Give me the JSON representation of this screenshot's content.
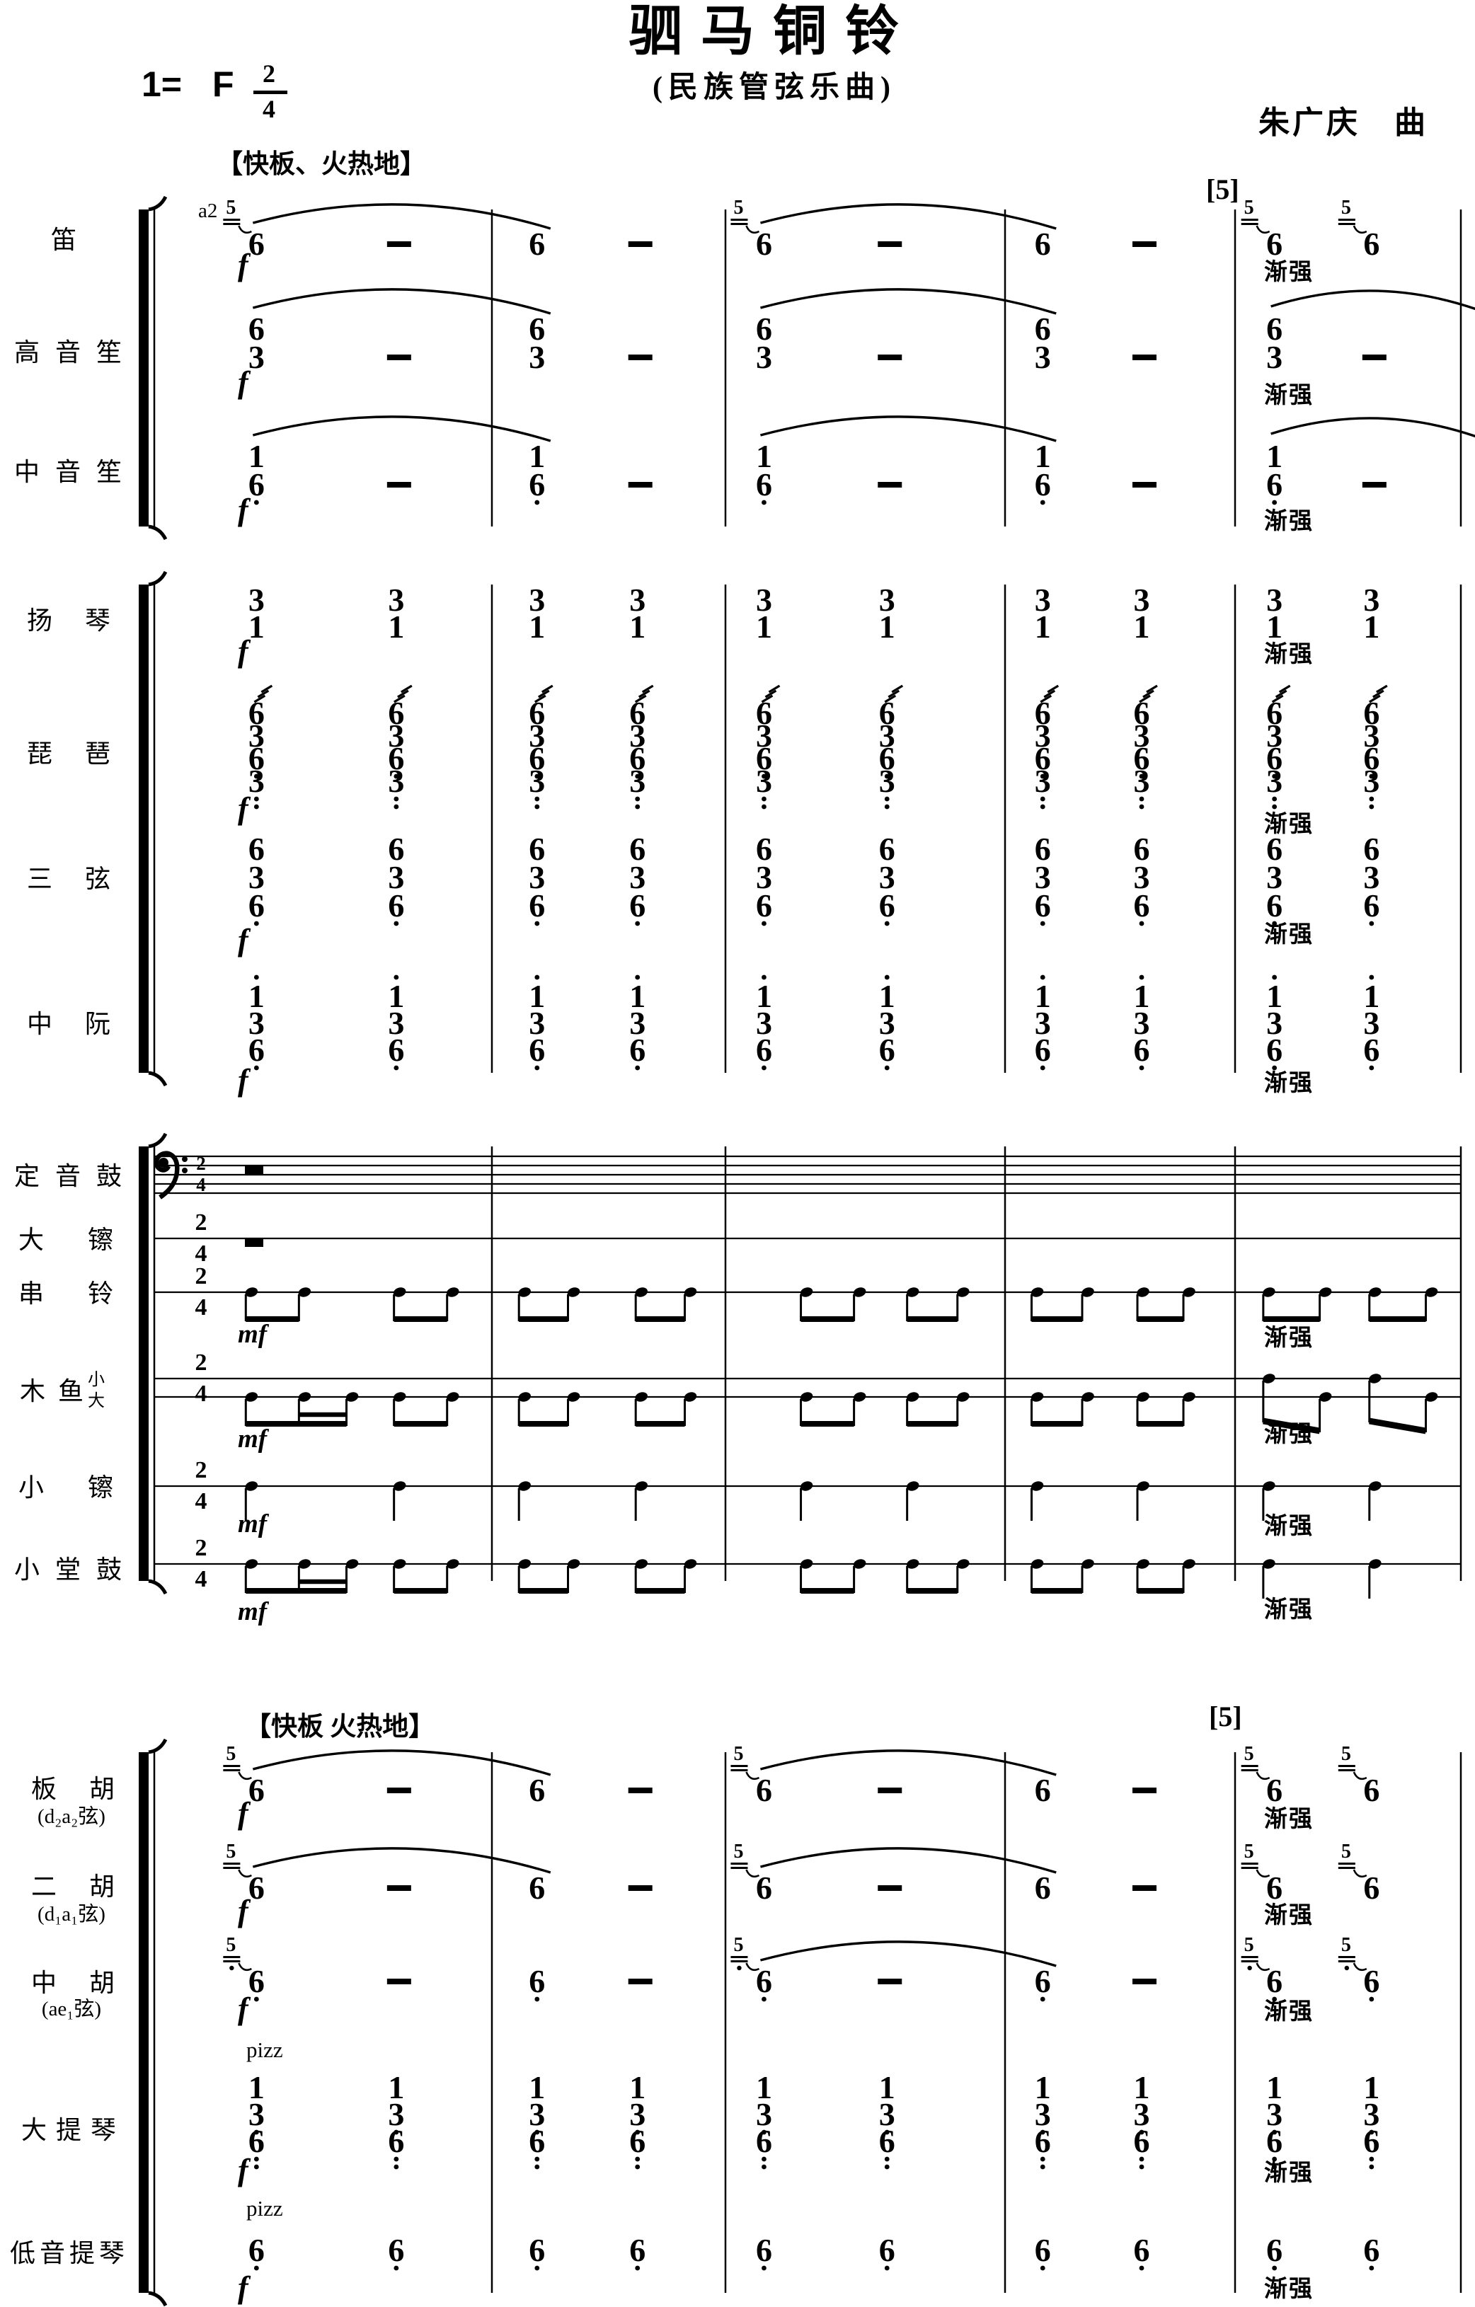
{
  "page": {
    "paper_color": "#ffffff",
    "ink_color": "#000000"
  },
  "header": {
    "title": "驷马铜铃",
    "subtitle": "(民族管弦乐曲)",
    "composer": "朱广庆　曲",
    "key_signature": "1=",
    "key_note": "F",
    "time_numerator": "2",
    "time_denominator": "4",
    "tempo_winds": "【快板、火热地】",
    "tempo_strings": "【快板 火热地】",
    "rehearsal_mark": "[5]"
  },
  "marks": {
    "forte": "f",
    "mezzo_forte": "mf",
    "crescendo": "渐强",
    "pizzicato": "pizz",
    "a2": "a2"
  },
  "instruments": [
    {
      "id": "di",
      "label": "笛",
      "type": "melody",
      "chord": [
        "6"
      ],
      "grace": "5",
      "bar_patterns": [
        "grace-note dash",
        "note dash",
        "grace-note dash",
        "note dash",
        "grace-note grace-note"
      ],
      "slurs": [
        [
          0,
          1
        ],
        [
          2,
          3
        ]
      ],
      "dynamic": "f",
      "crescendo_bar": 5,
      "note_marking": "a2"
    },
    {
      "id": "gaoyinsheng",
      "label": "高音笙",
      "type": "melody",
      "chord": [
        "6",
        "3"
      ],
      "bar_patterns": [
        "note dash",
        "note dash",
        "note dash",
        "note dash",
        "note dash"
      ],
      "slurs": [
        [
          0,
          1
        ],
        [
          2,
          3
        ],
        [
          4,
          "edge"
        ]
      ],
      "dynamic": "f",
      "crescendo_bar": 5
    },
    {
      "id": "zhongyinsheng",
      "label": "中音笙",
      "type": "melody",
      "chord": [
        "1",
        "6."
      ],
      "bar_patterns": [
        "note dash",
        "note dash",
        "note dash",
        "note dash",
        "note dash"
      ],
      "slurs": [
        [
          0,
          1
        ],
        [
          2,
          3
        ],
        [
          4,
          "edge"
        ]
      ],
      "dynamic": "f",
      "crescendo_bar": 5
    },
    {
      "id": "yangqin",
      "label": "扬 琴",
      "type": "melody",
      "chord": [
        "3",
        "1"
      ],
      "bar_patterns": [
        "note note",
        "note note",
        "note note",
        "note note",
        "note note"
      ],
      "slurs": [],
      "dynamic": "f",
      "crescendo_bar": 5
    },
    {
      "id": "pipa",
      "label": "琵 琶",
      "type": "melody",
      "tremolo": true,
      "chord": [
        "6",
        "3",
        "6.",
        "3:"
      ],
      "bar_patterns": [
        "note note",
        "note note",
        "note note",
        "note note",
        "note note"
      ],
      "slurs": [],
      "dynamic": "f",
      "crescendo_bar": 5
    },
    {
      "id": "sanxian",
      "label": "三 弦",
      "type": "melody",
      "chord": [
        "6",
        "3",
        "6."
      ],
      "bar_patterns": [
        "note note",
        "note note",
        "note note",
        "note note",
        "note note"
      ],
      "slurs": [],
      "dynamic": "f",
      "crescendo_bar": 5
    },
    {
      "id": "zhongruan",
      "label": "中 阮",
      "type": "melody",
      "chord": [
        "1'",
        "3",
        "6."
      ],
      "bar_patterns": [
        "note note",
        "note note",
        "note note",
        "note note",
        "note note"
      ],
      "slurs": [],
      "dynamic": "f",
      "crescendo_bar": 5
    },
    {
      "id": "dingyingu",
      "label": "定音鼓",
      "type": "percussion",
      "staff_lines": 5,
      "clef": "bass",
      "has_time_signature": true,
      "rhythm": [
        "rest",
        "",
        "",
        "",
        ""
      ]
    },
    {
      "id": "dacha",
      "label": "大 镲",
      "type": "percussion",
      "staff_lines": 1,
      "has_time_signature": true,
      "rhythm": [
        "rest",
        "",
        "",
        "",
        ""
      ]
    },
    {
      "id": "chuanling",
      "label": "串 铃",
      "type": "percussion",
      "staff_lines": 1,
      "has_time_signature": true,
      "rhythm": [
        "ee ee",
        "ee ee",
        "ee ee",
        "ee ee",
        "ee ee"
      ],
      "dynamic": "mf",
      "crescendo_bar": 5
    },
    {
      "id": "muyu",
      "label": "木鱼",
      "sub_top": "小",
      "sub_bottom": "大",
      "type": "percussion",
      "staff_lines": 2,
      "has_time_signature": true,
      "rhythm": [
        "e-ss ee",
        "ee ee",
        "ee ee",
        "ee ee",
        "alt alt"
      ],
      "dynamic": "mf",
      "crescendo_bar": 5
    },
    {
      "id": "xiaocha",
      "label": "小 镲",
      "type": "percussion",
      "staff_lines": 1,
      "has_time_signature": true,
      "rhythm": [
        "q q",
        "q q",
        "q q",
        "q q",
        "q q"
      ],
      "dynamic": "mf",
      "crescendo_bar": 5
    },
    {
      "id": "xiaotanggu",
      "label": "小堂鼓",
      "type": "percussion",
      "staff_lines": 1,
      "has_time_signature": true,
      "rhythm": [
        "e-ss ee",
        "ee ee",
        "ee ee",
        "ee ee",
        "q q"
      ],
      "dynamic": "mf",
      "crescendo_bar": 5
    },
    {
      "id": "banhu",
      "label": "板 胡",
      "sub": "(d₂a₂弦)",
      "type": "melody",
      "chord": [
        "6"
      ],
      "grace": "5",
      "bar_patterns": [
        "grace-note dash",
        "note dash",
        "grace-note dash",
        "note dash",
        "grace-note grace-note"
      ],
      "slurs": [
        [
          0,
          1
        ],
        [
          2,
          3
        ]
      ],
      "dynamic": "f",
      "crescendo_bar": 5
    },
    {
      "id": "erhu",
      "label": "二 胡",
      "sub": "(d₁a₁弦)",
      "type": "melody",
      "chord": [
        "6"
      ],
      "grace": "5",
      "bar_patterns": [
        "grace-note dash",
        "note dash",
        "grace-note dash",
        "note dash",
        "grace-note grace-note"
      ],
      "slurs": [
        [
          0,
          1
        ],
        [
          2,
          3
        ]
      ],
      "dynamic": "f",
      "crescendo_bar": 5
    },
    {
      "id": "zhonghu",
      "label": "中 胡",
      "sub": "(ae₁弦)",
      "type": "melody",
      "chord": [
        "6."
      ],
      "grace": "5.",
      "bar_patterns": [
        "grace-note dash",
        "note dash",
        "grace-note dash",
        "note dash",
        "grace-note grace-note"
      ],
      "slurs": [
        [
          2,
          3
        ]
      ],
      "dynamic": "f",
      "crescendo_bar": 5
    },
    {
      "id": "datiqin",
      "label": "大提琴",
      "type": "melody",
      "chord": [
        "1",
        "3.",
        "6:"
      ],
      "technique": "pizz",
      "bar_patterns": [
        "note note",
        "note note",
        "note note",
        "note note",
        "note note"
      ],
      "slurs": [],
      "dynamic": "f",
      "crescendo_bar": 5
    },
    {
      "id": "diyintiqin",
      "label": "低音提琴",
      "type": "melody",
      "chord": [
        "6."
      ],
      "technique": "pizz",
      "bar_patterns": [
        "note note",
        "note note",
        "note note",
        "note note",
        "note note"
      ],
      "slurs": [],
      "dynamic": "f",
      "crescendo_bar": 5
    }
  ]
}
